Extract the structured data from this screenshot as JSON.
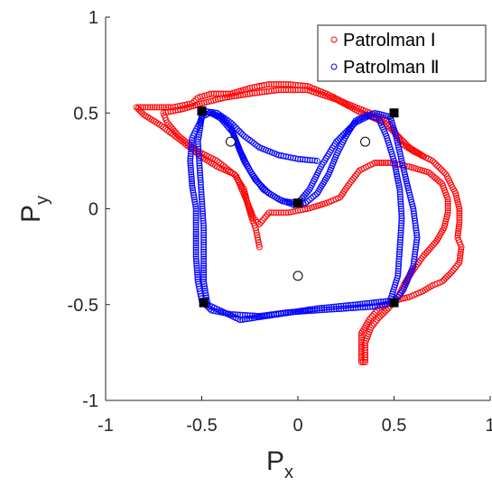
{
  "chart_data": {
    "type": "scatter",
    "xlabel": "P",
    "xlabel_sub": "x",
    "ylabel": "P",
    "ylabel_sub": "y",
    "xlim": [
      -1,
      1
    ],
    "ylim": [
      -1,
      1
    ],
    "xticks": [
      -1,
      -0.5,
      0,
      0.5,
      1
    ],
    "yticks": [
      -1,
      -0.5,
      0,
      0.5,
      1
    ],
    "xtick_labels": [
      "-1",
      "-0.5",
      "0",
      "0.5",
      "1"
    ],
    "ytick_labels": [
      "-1",
      "-0.5",
      "0",
      "0.5",
      "1"
    ],
    "grid": false,
    "legend_position": "top-right",
    "series": [
      {
        "name": "Patrolman Ⅰ",
        "color": "#ff0000",
        "marker": "open-circle",
        "path": [
          [
            -0.2,
            -0.2
          ],
          [
            -0.22,
            -0.1
          ],
          [
            -0.24,
            -0.05
          ],
          [
            -0.26,
            0.02
          ],
          [
            -0.28,
            0.1
          ],
          [
            -0.33,
            0.18
          ],
          [
            -0.42,
            0.22
          ],
          [
            -0.5,
            0.27
          ],
          [
            -0.6,
            0.35
          ],
          [
            -0.72,
            0.44
          ],
          [
            -0.8,
            0.49
          ],
          [
            -0.84,
            0.53
          ],
          [
            -0.78,
            0.53
          ],
          [
            -0.65,
            0.53
          ],
          [
            -0.55,
            0.55
          ],
          [
            -0.52,
            0.58
          ],
          [
            -0.45,
            0.6
          ],
          [
            -0.35,
            0.6
          ],
          [
            -0.25,
            0.63
          ],
          [
            -0.15,
            0.65
          ],
          [
            -0.05,
            0.65
          ],
          [
            0.05,
            0.64
          ],
          [
            0.15,
            0.6
          ],
          [
            0.25,
            0.55
          ],
          [
            0.35,
            0.51
          ],
          [
            0.45,
            0.47
          ],
          [
            0.5,
            0.41
          ],
          [
            0.54,
            0.34
          ],
          [
            0.6,
            0.3
          ],
          [
            0.7,
            0.25
          ],
          [
            0.77,
            0.18
          ],
          [
            0.82,
            0.08
          ],
          [
            0.84,
            0.0
          ],
          [
            0.84,
            -0.07
          ],
          [
            0.83,
            -0.15
          ],
          [
            0.85,
            -0.2
          ],
          [
            0.84,
            -0.28
          ],
          [
            0.8,
            -0.33
          ],
          [
            0.75,
            -0.38
          ],
          [
            0.7,
            -0.4
          ],
          [
            0.65,
            -0.43
          ],
          [
            0.58,
            -0.46
          ],
          [
            0.5,
            -0.48
          ],
          [
            0.42,
            -0.52
          ],
          [
            0.37,
            -0.58
          ],
          [
            0.33,
            -0.65
          ],
          [
            0.33,
            -0.72
          ],
          [
            0.33,
            -0.8
          ],
          [
            0.35,
            -0.8
          ],
          [
            0.35,
            -0.7
          ],
          [
            0.38,
            -0.62
          ],
          [
            0.42,
            -0.57
          ],
          [
            0.47,
            -0.52
          ],
          [
            0.52,
            -0.46
          ],
          [
            0.56,
            -0.38
          ],
          [
            0.6,
            -0.32
          ],
          [
            0.65,
            -0.25
          ],
          [
            0.72,
            -0.17
          ],
          [
            0.76,
            -0.1
          ],
          [
            0.78,
            -0.02
          ],
          [
            0.78,
            0.05
          ],
          [
            0.75,
            0.13
          ],
          [
            0.68,
            0.19
          ],
          [
            0.58,
            0.22
          ],
          [
            0.48,
            0.24
          ],
          [
            0.4,
            0.24
          ],
          [
            0.32,
            0.2
          ],
          [
            0.26,
            0.12
          ],
          [
            0.22,
            0.06
          ],
          [
            0.15,
            0.03
          ],
          [
            0.05,
            0.0
          ],
          [
            -0.05,
            -0.02
          ],
          [
            -0.15,
            -0.02
          ],
          [
            -0.2,
            -0.08
          ],
          [
            -0.23,
            -0.05
          ],
          [
            -0.27,
            0.05
          ],
          [
            -0.32,
            0.17
          ],
          [
            -0.42,
            0.25
          ],
          [
            -0.52,
            0.3
          ],
          [
            -0.62,
            0.38
          ],
          [
            -0.68,
            0.45
          ],
          [
            -0.7,
            0.5
          ],
          [
            -0.6,
            0.52
          ],
          [
            -0.5,
            0.55
          ],
          [
            -0.38,
            0.58
          ],
          [
            -0.25,
            0.6
          ],
          [
            -0.1,
            0.62
          ],
          [
            0.05,
            0.62
          ],
          [
            0.2,
            0.57
          ],
          [
            0.33,
            0.5
          ],
          [
            0.45,
            0.45
          ],
          [
            0.52,
            0.38
          ],
          [
            0.58,
            0.32
          ],
          [
            0.66,
            0.27
          ]
        ]
      },
      {
        "name": "Patrolman Ⅱ",
        "color": "#0000ff",
        "marker": "open-circle",
        "path": [
          [
            0.1,
            0.25
          ],
          [
            0.0,
            0.26
          ],
          [
            -0.1,
            0.28
          ],
          [
            -0.2,
            0.32
          ],
          [
            -0.28,
            0.38
          ],
          [
            -0.35,
            0.45
          ],
          [
            -0.42,
            0.5
          ],
          [
            -0.49,
            0.51
          ],
          [
            -0.51,
            0.45
          ],
          [
            -0.55,
            0.37
          ],
          [
            -0.56,
            0.25
          ],
          [
            -0.55,
            0.12
          ],
          [
            -0.53,
            0.0
          ],
          [
            -0.53,
            -0.12
          ],
          [
            -0.53,
            -0.25
          ],
          [
            -0.52,
            -0.38
          ],
          [
            -0.5,
            -0.48
          ],
          [
            -0.45,
            -0.53
          ],
          [
            -0.35,
            -0.55
          ],
          [
            -0.2,
            -0.56
          ],
          [
            -0.05,
            -0.54
          ],
          [
            0.1,
            -0.53
          ],
          [
            0.25,
            -0.52
          ],
          [
            0.4,
            -0.51
          ],
          [
            0.5,
            -0.49
          ],
          [
            0.55,
            -0.42
          ],
          [
            0.6,
            -0.3
          ],
          [
            0.62,
            -0.15
          ],
          [
            0.6,
            0.0
          ],
          [
            0.57,
            0.12
          ],
          [
            0.54,
            0.25
          ],
          [
            0.51,
            0.38
          ],
          [
            0.48,
            0.48
          ],
          [
            0.4,
            0.5
          ],
          [
            0.3,
            0.45
          ],
          [
            0.2,
            0.35
          ],
          [
            0.12,
            0.22
          ],
          [
            0.06,
            0.1
          ],
          [
            0.0,
            0.03
          ],
          [
            -0.08,
            0.04
          ],
          [
            -0.15,
            0.08
          ],
          [
            -0.22,
            0.15
          ],
          [
            -0.28,
            0.25
          ],
          [
            -0.32,
            0.35
          ],
          [
            -0.35,
            0.43
          ],
          [
            -0.4,
            0.48
          ],
          [
            -0.46,
            0.5
          ],
          [
            -0.5,
            0.48
          ],
          [
            -0.52,
            0.35
          ],
          [
            -0.51,
            0.2
          ],
          [
            -0.5,
            0.05
          ],
          [
            -0.49,
            -0.1
          ],
          [
            -0.49,
            -0.25
          ],
          [
            -0.49,
            -0.38
          ],
          [
            -0.47,
            -0.5
          ],
          [
            -0.3,
            -0.58
          ],
          [
            -0.1,
            -0.55
          ],
          [
            0.1,
            -0.52
          ],
          [
            0.3,
            -0.5
          ],
          [
            0.48,
            -0.48
          ],
          [
            0.52,
            -0.35
          ],
          [
            0.53,
            -0.2
          ],
          [
            0.54,
            -0.05
          ],
          [
            0.53,
            0.1
          ],
          [
            0.5,
            0.25
          ],
          [
            0.46,
            0.38
          ],
          [
            0.42,
            0.47
          ],
          [
            0.36,
            0.49
          ],
          [
            0.3,
            0.46
          ],
          [
            0.25,
            0.38
          ],
          [
            0.2,
            0.28
          ],
          [
            0.16,
            0.18
          ],
          [
            0.1,
            0.08
          ],
          [
            0.04,
            0.03
          ],
          [
            -0.02,
            0.02
          ],
          [
            -0.1,
            0.05
          ],
          [
            -0.18,
            0.1
          ],
          [
            -0.25,
            0.2
          ],
          [
            -0.3,
            0.3
          ],
          [
            -0.34,
            0.4
          ],
          [
            -0.4,
            0.47
          ],
          [
            -0.45,
            0.5
          ]
        ]
      }
    ],
    "target_points": [
      [
        -0.5,
        0.51
      ],
      [
        0.5,
        0.5
      ],
      [
        0.0,
        0.03
      ],
      [
        -0.49,
        -0.49
      ],
      [
        0.5,
        -0.49
      ]
    ],
    "open_points": [
      [
        -0.35,
        0.35
      ],
      [
        0.35,
        0.35
      ],
      [
        0.0,
        -0.35
      ]
    ]
  }
}
